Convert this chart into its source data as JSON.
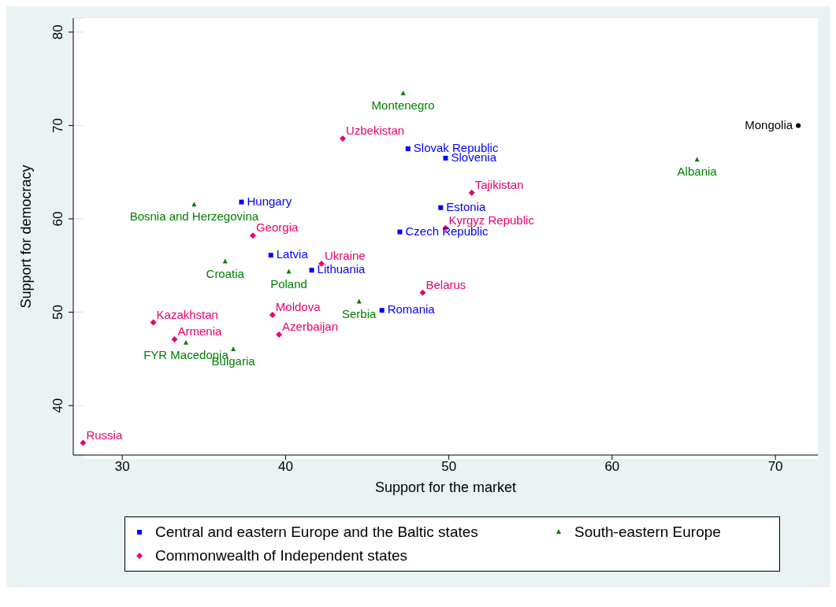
{
  "chart_data": {
    "type": "scatter",
    "xlabel": "Support for the market",
    "ylabel": "Support for democracy",
    "xlim": [
      27,
      72.6
    ],
    "ylim": [
      34.7,
      81.5
    ],
    "xticks": [
      30,
      40,
      50,
      60,
      70
    ],
    "yticks": [
      40,
      50,
      60,
      70,
      80
    ],
    "grid": "y",
    "legend": "bottom",
    "series": [
      {
        "name": "Central and eastern Europe and the Baltic states",
        "color": "#0000ff",
        "marker": "square",
        "x": [
          37.3,
          47.5,
          49.8,
          49.5,
          47.0,
          39.1,
          41.6,
          45.9
        ],
        "values": [
          61.8,
          67.5,
          66.5,
          61.2,
          58.6,
          56.1,
          54.5,
          50.2
        ],
        "value_labels": [
          "Hungary",
          "Slovak Republic",
          "Slovenia",
          "Estonia",
          "Czech Republic",
          "Latvia",
          "Lithuania",
          "Romania"
        ]
      },
      {
        "name": "South-eastern Europe",
        "color": "#008000",
        "marker": "triangle",
        "x": [
          47.2,
          65.2,
          34.4,
          36.3,
          40.2,
          44.5,
          33.9,
          36.8
        ],
        "values": [
          73.4,
          66.3,
          61.5,
          55.4,
          54.3,
          51.1,
          46.7,
          46.0
        ],
        "value_labels": [
          "Montenegro",
          "Albania",
          "Bosnia and Herzegovina",
          "Croatia",
          "Poland",
          "Serbia",
          "FYR Macedonia",
          "Bulgaria"
        ]
      },
      {
        "name": "Commonwealth of Independent states",
        "color": "#e8006e",
        "marker": "diamond",
        "x": [
          43.5,
          51.4,
          49.8,
          38.0,
          42.2,
          48.4,
          39.2,
          39.6,
          31.9,
          33.2,
          27.6
        ],
        "values": [
          68.6,
          62.8,
          59.0,
          58.2,
          55.2,
          52.1,
          49.7,
          47.6,
          48.9,
          47.1,
          36.0
        ],
        "value_labels": [
          "Uzbekistan",
          "Tajikistan",
          "Kyrgyz Republic",
          "Georgia",
          "Ukraine",
          "Belarus",
          "Moldova",
          "Azerbaijan",
          "Kazakhstan",
          "Armenia",
          "Russia"
        ]
      },
      {
        "color": "#000000",
        "marker": "circle",
        "x": [
          71.4
        ],
        "values": [
          70.0
        ],
        "value_labels": [
          "Mongolia"
        ]
      }
    ]
  }
}
